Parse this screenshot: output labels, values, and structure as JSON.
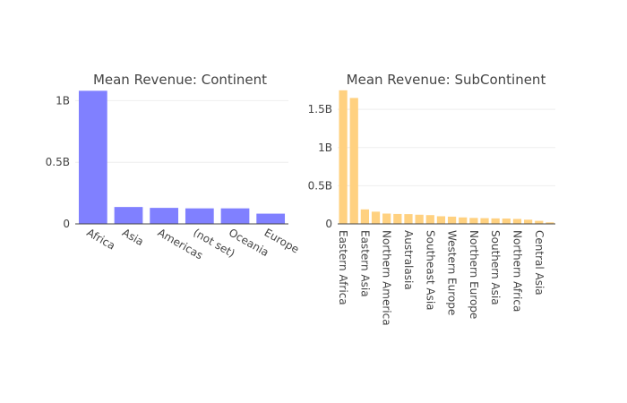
{
  "chart_data": [
    {
      "type": "bar",
      "title": "Mean Revenue: Continent",
      "categories": [
        "Africa",
        "Asia",
        "Americas",
        "(not set)",
        "Oceania",
        "Europe"
      ],
      "values": [
        1080000000,
        137000000,
        130000000,
        126000000,
        126000000,
        83000000
      ],
      "ylim": [
        0,
        1090000000
      ],
      "yticks": [
        0,
        500000000,
        1000000000
      ],
      "ytick_labels": [
        "0",
        "0.5B",
        "1B"
      ],
      "color": "#8080ff",
      "grid": true,
      "xlabel_rotation": 30
    },
    {
      "type": "bar",
      "title": "Mean Revenue: SubContinent",
      "categories": [
        "Eastern Africa",
        "",
        "Eastern Asia",
        "",
        "Northern America",
        "",
        "Australasia",
        "",
        "Southeast Asia",
        "",
        "Western Europe",
        "",
        "Northern Europe",
        "",
        "Southern Asia",
        "",
        "Northern Africa",
        "",
        "Central Asia",
        ""
      ],
      "values": [
        1750000000,
        1650000000,
        190000000,
        160000000,
        135000000,
        130000000,
        128000000,
        120000000,
        115000000,
        100000000,
        95000000,
        85000000,
        78000000,
        75000000,
        72000000,
        70000000,
        65000000,
        55000000,
        40000000,
        20000000
      ],
      "ylim": [
        0,
        1760000000
      ],
      "yticks": [
        0,
        500000000,
        1000000000,
        1500000000
      ],
      "ytick_labels": [
        "0",
        "0.5B",
        "1B",
        "1.5B"
      ],
      "color": "#ffd180",
      "grid": true,
      "xlabel_rotation": 90
    }
  ]
}
